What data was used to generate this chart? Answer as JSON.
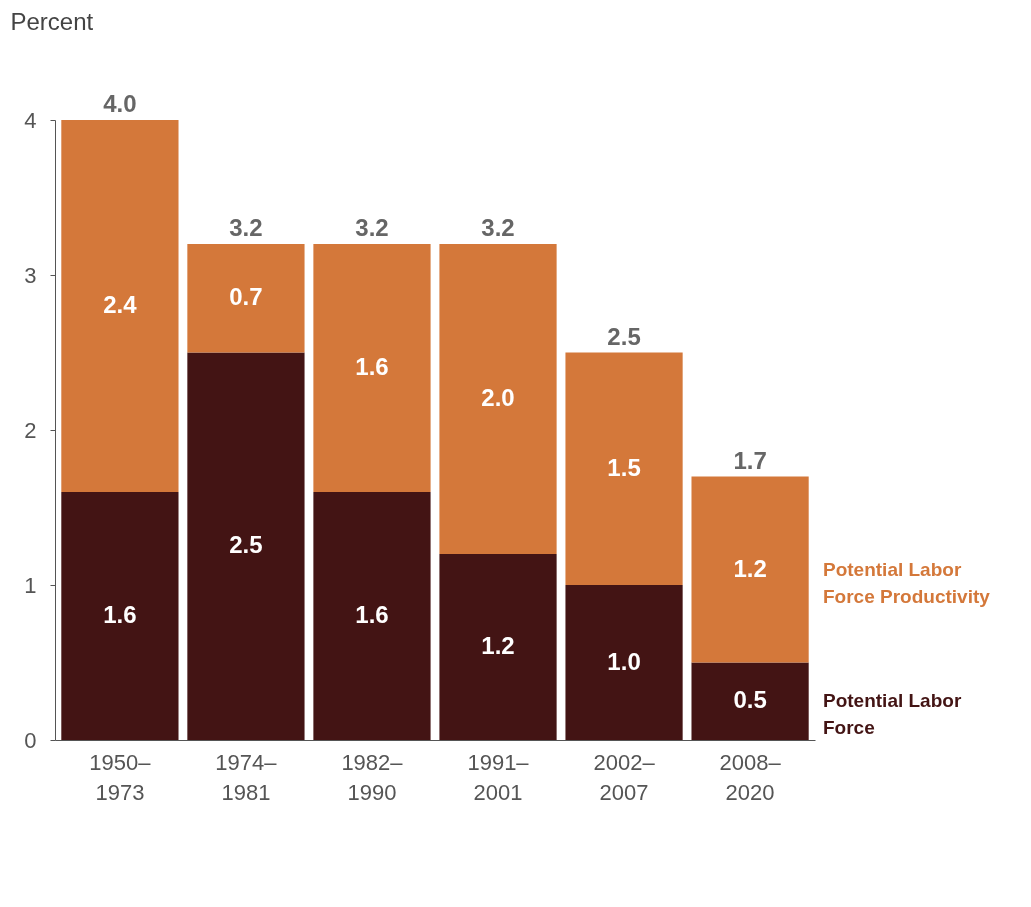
{
  "chart_data": {
    "type": "bar",
    "ylabel": "Percent",
    "stacked": true,
    "categories": [
      "1950–\n1973",
      "1974–\n1981",
      "1982–\n1990",
      "1991–\n2001",
      "2002–\n2007",
      "2008–\n2020"
    ],
    "series": [
      {
        "name": "Potential Labor Force",
        "color": "#431414",
        "values": [
          1.6,
          2.5,
          1.6,
          1.2,
          1.0,
          0.5
        ],
        "value_labels": [
          "1.6",
          "2.5",
          "1.6",
          "1.2",
          "1.0",
          "0.5"
        ]
      },
      {
        "name": "Potential Labor Force Productivity",
        "color": "#d4783a",
        "values": [
          2.4,
          0.7,
          1.6,
          2.0,
          1.5,
          1.2
        ],
        "value_labels": [
          "2.4",
          "0.7",
          "1.6",
          "2.0",
          "1.5",
          "1.2"
        ]
      }
    ],
    "totals": [
      "4.0",
      "3.2",
      "3.2",
      "3.2",
      "2.5",
      "1.7"
    ],
    "ylim": [
      0,
      4
    ],
    "yticks": [
      0,
      1,
      2,
      3,
      4
    ],
    "grid": false,
    "legend": "right"
  }
}
